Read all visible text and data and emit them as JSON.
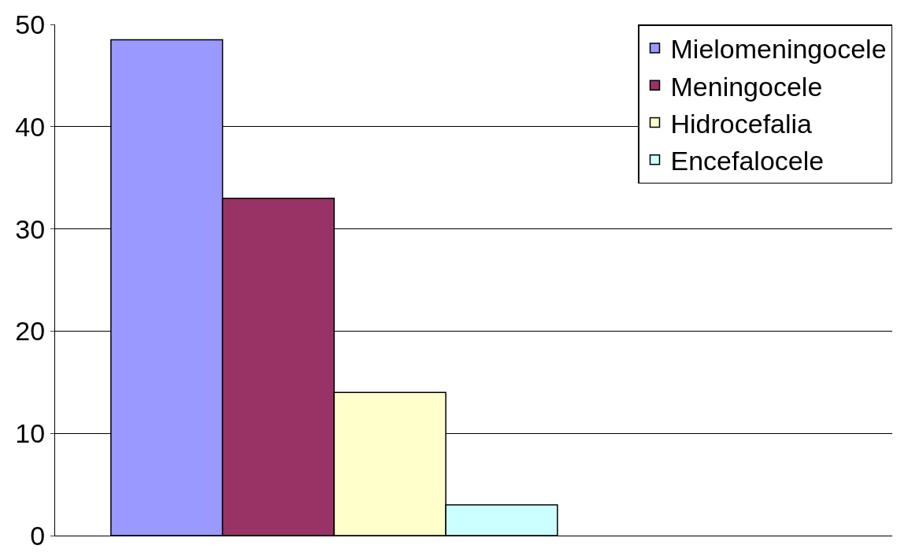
{
  "chart_data": {
    "type": "bar",
    "categories": [
      null
    ],
    "series": [
      {
        "name": "Mielomeningocele",
        "color": "#9999ff",
        "values": [
          48.5
        ]
      },
      {
        "name": "Meningocele",
        "color": "#993366",
        "values": [
          33
        ]
      },
      {
        "name": "Hidrocefalia",
        "color": "#ffffcc",
        "values": [
          14
        ]
      },
      {
        "name": "Encefalocele",
        "color": "#ccffff",
        "values": [
          3
        ]
      }
    ],
    "ylim": [
      0,
      50
    ],
    "yticks": [
      0,
      10,
      20,
      30,
      40,
      50
    ],
    "grid": "y",
    "legend": "top right"
  }
}
